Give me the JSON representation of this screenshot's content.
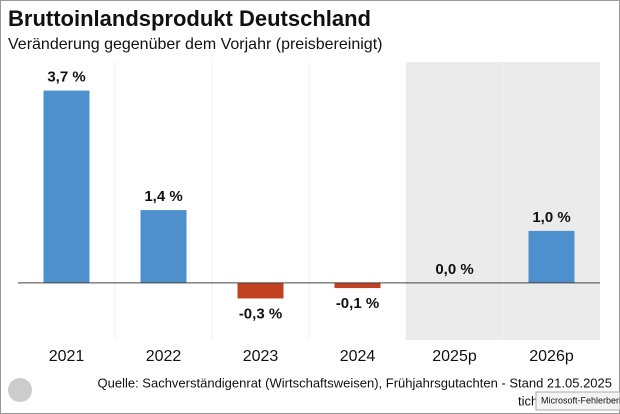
{
  "chart_data": {
    "type": "bar",
    "title": "Bruttoinlandsprodukt Deutschland",
    "subtitle": "Veränderung gegenüber dem Vorjahr (preisbereinigt)",
    "categories": [
      "2021",
      "2022",
      "2023",
      "2024",
      "2025p",
      "2026p"
    ],
    "values": [
      3.7,
      1.4,
      -0.3,
      -0.1,
      0.0,
      1.0
    ],
    "value_labels": [
      "3,7 %",
      "1,4 %",
      "-0,3 %",
      "-0,1 %",
      "0,0 %",
      "1,0 %"
    ],
    "positive_color": "#4e8fcd",
    "negative_color": "#c1401f",
    "shade_from": "2025p",
    "shade_color": "#ebebeb",
    "ylim": [
      -1.1,
      4.25
    ],
    "source": "Quelle: Sachverständigenrat (Wirtschaftsweisen), Frühjahrsgutachten - Stand 21.05.2025"
  },
  "overlay": {
    "logo_text": "tich",
    "tooltip": "Microsoft-Fehlerberich"
  }
}
